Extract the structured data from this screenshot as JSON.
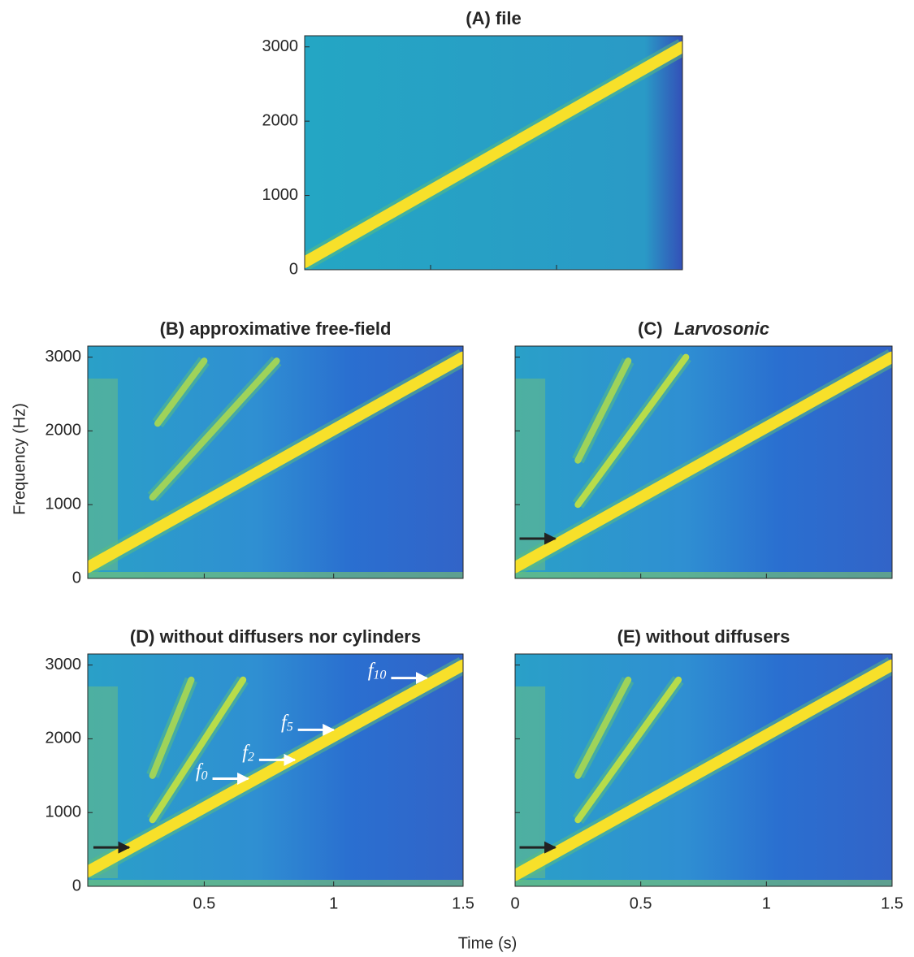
{
  "shared_labels": {
    "x": "Time (s)",
    "y": "Frequency (Hz)"
  },
  "chart_data": [
    {
      "type": "spectrogram",
      "title": "(A) file",
      "xlim": [
        0,
        1.5
      ],
      "ylim": [
        0,
        3150
      ],
      "xticks": [
        0,
        0.5,
        1,
        1.5
      ],
      "yticks": [
        0,
        1000,
        2000,
        3000
      ],
      "xtick_labels": false,
      "ytick_labels": true,
      "series": [
        {
          "color": "#f7e02a",
          "x": [
            0,
            1.5
          ],
          "values": [
            100,
            3000
          ]
        }
      ]
    },
    {
      "type": "spectrogram",
      "title": "(B) approximative free-field",
      "xlim": [
        0.05,
        1.5
      ],
      "ylim": [
        0,
        3150
      ],
      "xticks": [
        0.5,
        1,
        1.5
      ],
      "yticks": [
        0,
        1000,
        2000,
        3000
      ],
      "xtick_labels": false,
      "ytick_labels": true,
      "series": [
        {
          "color": "#f7e02a",
          "x": [
            0.05,
            1.5
          ],
          "values": [
            150,
            3000
          ]
        },
        {
          "color": "#9fd35a",
          "x": [
            0.3,
            0.78
          ],
          "values": [
            1100,
            2950
          ]
        },
        {
          "color": "#9fd35a",
          "x": [
            0.32,
            0.5
          ],
          "values": [
            2100,
            2950
          ]
        }
      ]
    },
    {
      "type": "spectrogram",
      "title": "(C)",
      "title_italic": "Larvosonic",
      "xlim": [
        0,
        1.5
      ],
      "ylim": [
        0,
        3150
      ],
      "xticks": [
        0,
        0.5,
        1,
        1.5
      ],
      "yticks": [
        0,
        1000,
        2000,
        3000
      ],
      "xtick_labels": false,
      "ytick_labels": false,
      "series": [
        {
          "color": "#f7e02a",
          "x": [
            0,
            1.5
          ],
          "values": [
            150,
            3000
          ]
        },
        {
          "color": "#b8dc4a",
          "x": [
            0.25,
            0.68
          ],
          "values": [
            1000,
            3000
          ]
        },
        {
          "color": "#9fd35a",
          "x": [
            0.25,
            0.45
          ],
          "values": [
            1600,
            2950
          ]
        }
      ],
      "arrows": [
        {
          "color": "#222222",
          "x": 0.16,
          "y": 540
        }
      ]
    },
    {
      "type": "spectrogram",
      "title": "(D) without diffusers nor cylinders",
      "xlim": [
        0.05,
        1.5
      ],
      "ylim": [
        0,
        3150
      ],
      "xticks": [
        0.5,
        1,
        1.5
      ],
      "yticks": [
        0,
        1000,
        2000,
        3000
      ],
      "xtick_labels": true,
      "ytick_labels": true,
      "series": [
        {
          "color": "#f7e02a",
          "x": [
            0.05,
            1.5
          ],
          "values": [
            200,
            3000
          ]
        },
        {
          "color": "#b8dc4a",
          "x": [
            0.3,
            0.65
          ],
          "values": [
            900,
            2800
          ]
        },
        {
          "color": "#9fd35a",
          "x": [
            0.3,
            0.45
          ],
          "values": [
            1500,
            2800
          ]
        }
      ],
      "arrows": [
        {
          "color": "#222222",
          "x": 0.21,
          "y": 527
        },
        {
          "color": "#ffffff",
          "text": "f",
          "sub": "0",
          "x": 0.67,
          "y": 1460
        },
        {
          "color": "#ffffff",
          "text": "f",
          "sub": "2",
          "x": 0.85,
          "y": 1714
        },
        {
          "color": "#ffffff",
          "text": "f",
          "sub": "5",
          "x": 1.0,
          "y": 2121
        },
        {
          "color": "#ffffff",
          "text": "f",
          "sub": "10",
          "x": 1.36,
          "y": 2824
        }
      ]
    },
    {
      "type": "spectrogram",
      "title": "(E) without diffusers",
      "xlim": [
        0,
        1.5
      ],
      "ylim": [
        0,
        3150
      ],
      "xticks": [
        0,
        0.5,
        1,
        1.5
      ],
      "yticks": [
        0,
        1000,
        2000,
        3000
      ],
      "xtick_labels": true,
      "ytick_labels": false,
      "series": [
        {
          "color": "#f7e02a",
          "x": [
            0,
            1.5
          ],
          "values": [
            150,
            3000
          ]
        },
        {
          "color": "#b8dc4a",
          "x": [
            0.25,
            0.65
          ],
          "values": [
            900,
            2800
          ]
        },
        {
          "color": "#9fd35a",
          "x": [
            0.25,
            0.45
          ],
          "values": [
            1500,
            2800
          ]
        }
      ],
      "arrows": [
        {
          "color": "#222222",
          "x": 0.16,
          "y": 527
        }
      ]
    }
  ]
}
